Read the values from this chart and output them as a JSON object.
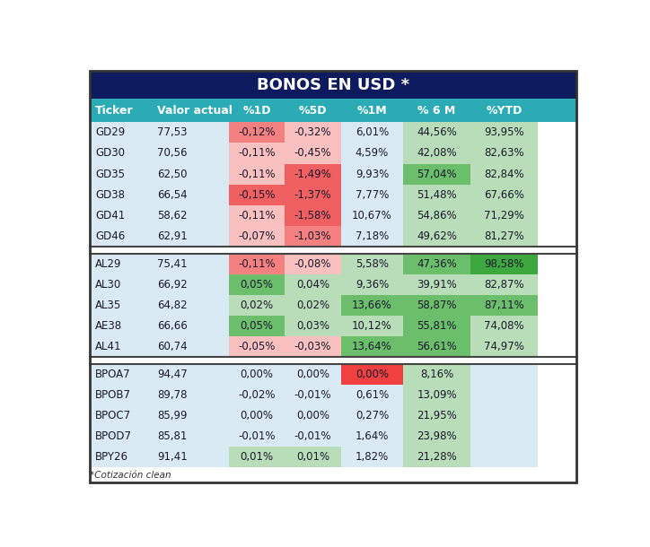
{
  "title": "BONOS EN USD *",
  "title_bg": "#0d1b5e",
  "title_color": "#ffffff",
  "header_bg": "#2aabb5",
  "header_color": "#ffffff",
  "columns": [
    "Ticker",
    "Valor actual",
    "%1D",
    "%5D",
    "%1M",
    "% 6 M",
    "%YTD"
  ],
  "footnote": "*Cotización clean",
  "row_bg": "#daeaf4",
  "groups": [
    {
      "rows": [
        [
          "GD29",
          "77,53",
          "-0,12%",
          "-0,32%",
          "6,01%",
          "44,56%",
          "93,95%"
        ],
        [
          "GD30",
          "70,56",
          "-0,11%",
          "-0,45%",
          "4,59%",
          "42,08%",
          "82,63%"
        ],
        [
          "GD35",
          "62,50",
          "-0,11%",
          "-1,49%",
          "9,93%",
          "57,04%",
          "82,84%"
        ],
        [
          "GD38",
          "66,54",
          "-0,15%",
          "-1,37%",
          "7,77%",
          "51,48%",
          "67,66%"
        ],
        [
          "GD41",
          "58,62",
          "-0,11%",
          "-1,58%",
          "10,67%",
          "54,86%",
          "71,29%"
        ],
        [
          "GD46",
          "62,91",
          "-0,07%",
          "-1,03%",
          "7,18%",
          "49,62%",
          "81,27%"
        ]
      ],
      "cell_colors": [
        [
          "bg",
          "bg",
          "red_med",
          "red_light",
          "bg",
          "green_light",
          "green_light"
        ],
        [
          "bg",
          "bg",
          "red_light",
          "red_light",
          "bg",
          "green_light",
          "green_light"
        ],
        [
          "bg",
          "bg",
          "red_light",
          "red_strong",
          "bg",
          "green_med",
          "green_light"
        ],
        [
          "bg",
          "bg",
          "red_strong",
          "red_strong",
          "bg",
          "green_light",
          "green_light"
        ],
        [
          "bg",
          "bg",
          "red_light",
          "red_strong",
          "bg",
          "green_light",
          "green_light"
        ],
        [
          "bg",
          "bg",
          "red_light",
          "red_med",
          "bg",
          "green_light",
          "green_light"
        ]
      ]
    },
    {
      "rows": [
        [
          "AL29",
          "75,41",
          "-0,11%",
          "-0,08%",
          "5,58%",
          "47,36%",
          "98,58%"
        ],
        [
          "AL30",
          "66,92",
          "0,05%",
          "0,04%",
          "9,36%",
          "39,91%",
          "82,87%"
        ],
        [
          "AL35",
          "64,82",
          "0,02%",
          "0,02%",
          "13,66%",
          "58,87%",
          "87,11%"
        ],
        [
          "AE38",
          "66,66",
          "0,05%",
          "0,03%",
          "10,12%",
          "55,81%",
          "74,08%"
        ],
        [
          "AL41",
          "60,74",
          "-0,05%",
          "-0,03%",
          "13,64%",
          "56,61%",
          "74,97%"
        ]
      ],
      "cell_colors": [
        [
          "bg",
          "bg",
          "red_med",
          "red_light",
          "green_light",
          "green_med",
          "green_dark"
        ],
        [
          "bg",
          "bg",
          "green_med",
          "green_light",
          "green_light",
          "green_light",
          "green_light"
        ],
        [
          "bg",
          "bg",
          "green_light",
          "green_light",
          "green_med",
          "green_med",
          "green_med"
        ],
        [
          "bg",
          "bg",
          "green_med",
          "green_light",
          "green_light",
          "green_med",
          "green_light"
        ],
        [
          "bg",
          "bg",
          "red_light",
          "red_light",
          "green_med",
          "green_med",
          "green_light"
        ]
      ]
    },
    {
      "rows": [
        [
          "BPOA7",
          "94,47",
          "0,00%",
          "0,00%",
          "0,00%",
          "8,16%",
          ""
        ],
        [
          "BPOB7",
          "89,78",
          "-0,02%",
          "-0,01%",
          "0,61%",
          "13,09%",
          ""
        ],
        [
          "BPOC7",
          "85,99",
          "0,00%",
          "0,00%",
          "0,27%",
          "21,95%",
          ""
        ],
        [
          "BPOD7",
          "85,81",
          "-0,01%",
          "-0,01%",
          "1,64%",
          "23,98%",
          ""
        ],
        [
          "BPY26",
          "91,41",
          "0,01%",
          "0,01%",
          "1,82%",
          "21,28%",
          ""
        ]
      ],
      "cell_colors": [
        [
          "bg",
          "bg",
          "bg",
          "bg",
          "red_strong2",
          "green_light",
          "bg"
        ],
        [
          "bg",
          "bg",
          "bg",
          "bg",
          "bg",
          "green_light",
          "bg"
        ],
        [
          "bg",
          "bg",
          "bg",
          "bg",
          "bg",
          "green_light",
          "bg"
        ],
        [
          "bg",
          "bg",
          "bg",
          "bg",
          "bg",
          "green_light",
          "bg"
        ],
        [
          "bg",
          "bg",
          "green_light",
          "green_light",
          "bg",
          "green_light",
          "bg"
        ]
      ]
    }
  ],
  "color_map": {
    "bg": "#daeaf4",
    "red_light": "#f9c0c0",
    "red_med": "#f58080",
    "red_strong": "#f06060",
    "red_strong2": "#f04040",
    "green_light": "#b8ddb8",
    "green_med": "#6bbf6b",
    "green_dark": "#3da83d"
  }
}
